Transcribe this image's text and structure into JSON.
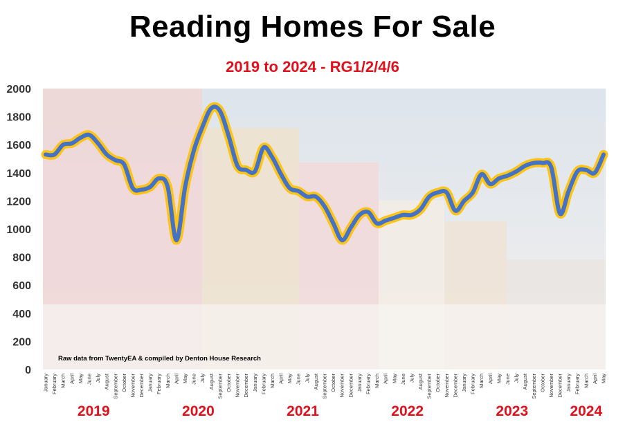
{
  "chart_data": {
    "type": "line",
    "title": "Reading Homes For Sale",
    "subtitle": "2019 to 2024 - RG1/2/4/6",
    "credit": "Raw data from TwentyEA & compiled by Denton House Research",
    "ylim": [
      0,
      2000
    ],
    "yticks": [
      "0",
      "200",
      "400",
      "600",
      "800",
      "1000",
      "1200",
      "1400",
      "1600",
      "1800",
      "2000"
    ],
    "years": [
      "2019",
      "2020",
      "2021",
      "2022",
      "2023",
      "2024"
    ],
    "x": [
      "January",
      "February",
      "March",
      "April",
      "May",
      "June",
      "July",
      "August",
      "September",
      "October",
      "November",
      "December",
      "January",
      "February",
      "March",
      "April",
      "May",
      "June",
      "July",
      "August",
      "September",
      "October",
      "November",
      "December",
      "January",
      "February",
      "March",
      "April",
      "May",
      "June",
      "July",
      "August",
      "September",
      "October",
      "November",
      "December",
      "January",
      "February",
      "March",
      "April",
      "May",
      "June",
      "July",
      "August",
      "September",
      "October",
      "November",
      "December",
      "January",
      "February",
      "March",
      "April",
      "May",
      "June",
      "July",
      "August",
      "September",
      "October",
      "November",
      "December",
      "January",
      "February",
      "March",
      "April",
      "May"
    ],
    "values": [
      1530,
      1530,
      1600,
      1610,
      1650,
      1670,
      1610,
      1530,
      1490,
      1460,
      1290,
      1280,
      1300,
      1360,
      1300,
      920,
      1300,
      1560,
      1730,
      1860,
      1840,
      1660,
      1450,
      1420,
      1410,
      1580,
      1510,
      1390,
      1290,
      1270,
      1230,
      1230,
      1160,
      1040,
      920,
      1010,
      1100,
      1120,
      1040,
      1060,
      1080,
      1100,
      1100,
      1140,
      1230,
      1260,
      1260,
      1130,
      1200,
      1260,
      1390,
      1320,
      1360,
      1380,
      1410,
      1450,
      1470,
      1470,
      1440,
      1110,
      1270,
      1410,
      1420,
      1400,
      1530
    ],
    "grid": false,
    "legend": "none",
    "colors": {
      "line": "#4472c4",
      "glow": "#ffc000",
      "years": "#e3101b"
    }
  }
}
